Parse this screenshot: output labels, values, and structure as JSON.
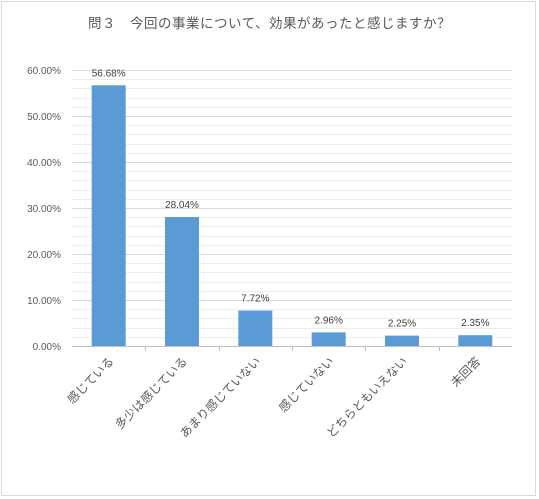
{
  "chart_data": {
    "type": "bar",
    "title": "問３　今回の事業について、効果があったと感じますか？",
    "categories": [
      "感じている",
      "多少は感じている",
      "あまり感じていない",
      "感じていない",
      "どちらともいえない",
      "未回答"
    ],
    "values": [
      56.68,
      28.04,
      7.72,
      2.96,
      2.25,
      2.35
    ],
    "data_labels": [
      "56.68%",
      "28.04%",
      "7.72%",
      "2.96%",
      "2.25%",
      "2.35%"
    ],
    "y_ticks": [
      "0.00%",
      "10.00%",
      "20.00%",
      "30.00%",
      "40.00%",
      "50.00%",
      "60.00%"
    ],
    "ylim": [
      0,
      60
    ],
    "grid": true,
    "bar_color": "#5b9bd5"
  }
}
